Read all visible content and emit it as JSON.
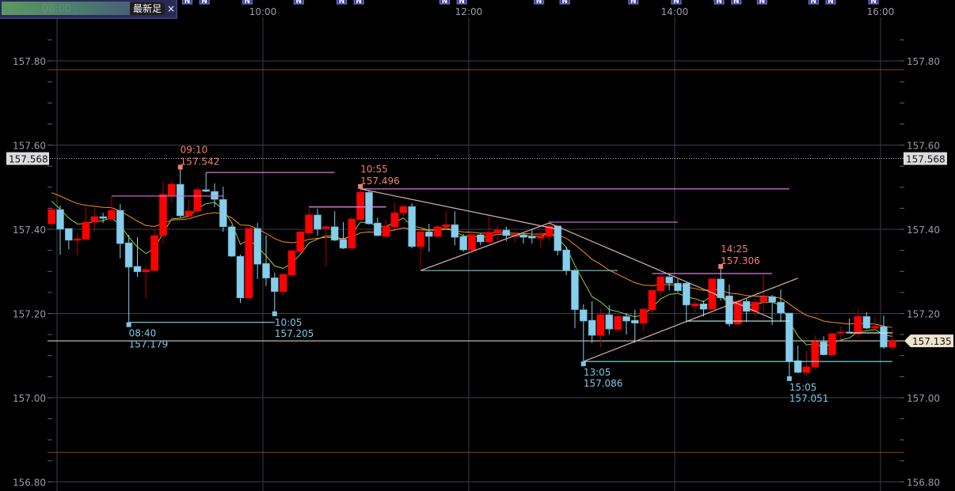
{
  "toolbar": {
    "latest_bar_label": "最新足",
    "close_label": "×",
    "faded_time_label": "08:00"
  },
  "chart_data": {
    "type": "candlestick",
    "xlabel": "",
    "ylabel": "",
    "time_ticks": [
      "08:00",
      "10:00",
      "12:00",
      "14:00",
      "16:00"
    ],
    "price_ticks": [
      "157.80",
      "157.60",
      "157.40",
      "157.20",
      "157.00",
      "156.80"
    ],
    "ylim": [
      156.78,
      157.945
    ],
    "grid": true,
    "colors": {
      "up": "#ff0000",
      "down": "#87ceeb",
      "ma_short": "#9acd32",
      "ma_long": "#ff8c1a",
      "high_label": "#f08070",
      "low_label": "#7ec8e8",
      "current_price": "#efe4cc",
      "range_line": "#8b4513"
    },
    "candles": [
      [
        "07:55",
        157.413,
        157.449,
        157.409,
        157.447
      ],
      [
        "08:00",
        157.447,
        157.456,
        157.34,
        157.4
      ],
      [
        "08:05",
        157.402,
        157.402,
        157.353,
        157.374
      ],
      [
        "08:10",
        157.374,
        157.391,
        157.338,
        157.377
      ],
      [
        "08:15",
        157.376,
        157.453,
        157.376,
        157.417
      ],
      [
        "08:20",
        157.417,
        157.454,
        157.394,
        157.43
      ],
      [
        "08:25",
        157.43,
        157.439,
        157.415,
        157.426
      ],
      [
        "08:30",
        157.424,
        157.479,
        157.424,
        157.445
      ],
      [
        "08:35",
        157.445,
        157.46,
        157.331,
        157.366
      ],
      [
        "08:40",
        157.368,
        157.387,
        157.179,
        157.31
      ],
      [
        "08:45",
        157.312,
        157.381,
        157.287,
        157.299
      ],
      [
        "08:50",
        157.299,
        157.312,
        157.235,
        157.304
      ],
      [
        "08:55",
        157.302,
        157.4,
        157.302,
        157.385
      ],
      [
        "09:00",
        157.385,
        157.513,
        157.366,
        157.483
      ],
      [
        "09:05",
        157.481,
        157.516,
        157.462,
        157.507
      ],
      [
        "09:10",
        157.507,
        157.542,
        157.428,
        157.432
      ],
      [
        "09:15",
        157.432,
        157.471,
        157.423,
        157.443
      ],
      [
        "09:20",
        157.443,
        157.501,
        157.439,
        157.494
      ],
      [
        "09:25",
        157.494,
        157.535,
        157.488,
        157.49
      ],
      [
        "09:30",
        157.49,
        157.509,
        157.453,
        157.471
      ],
      [
        "09:35",
        157.471,
        157.501,
        157.394,
        157.406
      ],
      [
        "09:40",
        157.406,
        157.409,
        157.334,
        157.336
      ],
      [
        "09:45",
        157.336,
        157.34,
        157.225,
        157.237
      ],
      [
        "09:50",
        157.237,
        157.404,
        157.233,
        157.402
      ],
      [
        "09:55",
        157.402,
        157.415,
        157.282,
        157.317
      ],
      [
        "10:00",
        157.319,
        157.385,
        157.265,
        157.284
      ],
      [
        "10:05",
        157.285,
        157.297,
        157.205,
        157.252
      ],
      [
        "10:10",
        157.252,
        157.295,
        157.242,
        157.293
      ],
      [
        "10:15",
        157.291,
        157.351,
        157.289,
        157.349
      ],
      [
        "10:20",
        157.347,
        157.396,
        157.344,
        157.394
      ],
      [
        "10:25",
        157.391,
        157.453,
        157.381,
        157.434
      ],
      [
        "10:30",
        157.434,
        157.449,
        157.385,
        157.4
      ],
      [
        "10:35",
        157.402,
        157.409,
        157.312,
        157.406
      ],
      [
        "10:40",
        157.406,
        157.443,
        157.372,
        157.374
      ],
      [
        "10:45",
        157.376,
        157.417,
        157.353,
        157.355
      ],
      [
        "10:50",
        157.355,
        157.428,
        157.353,
        157.424
      ],
      [
        "10:55",
        157.423,
        157.496,
        157.421,
        157.488
      ],
      [
        "11:00",
        157.488,
        157.492,
        157.411,
        157.413
      ],
      [
        "11:05",
        157.415,
        157.428,
        157.383,
        157.385
      ],
      [
        "11:10",
        157.383,
        157.423,
        157.383,
        157.408
      ],
      [
        "11:15",
        157.406,
        157.464,
        157.4,
        157.439
      ],
      [
        "11:20",
        157.439,
        157.46,
        157.432,
        157.454
      ],
      [
        "11:25",
        157.454,
        157.462,
        157.355,
        157.359
      ],
      [
        "11:30",
        157.359,
        157.406,
        157.306,
        157.394
      ],
      [
        "11:35",
        157.394,
        157.413,
        157.347,
        157.383
      ],
      [
        "11:40",
        157.383,
        157.409,
        157.381,
        157.406
      ],
      [
        "11:45",
        157.406,
        157.443,
        157.4,
        157.411
      ],
      [
        "11:50",
        157.411,
        157.443,
        157.362,
        157.381
      ],
      [
        "11:55",
        157.383,
        157.389,
        157.347,
        157.351
      ],
      [
        "12:00",
        157.351,
        157.393,
        157.344,
        157.387
      ],
      [
        "12:05",
        157.387,
        157.391,
        157.362,
        157.37
      ],
      [
        "12:10",
        157.37,
        157.43,
        157.37,
        157.393
      ],
      [
        "12:15",
        157.391,
        157.409,
        157.372,
        157.398
      ],
      [
        "12:20",
        157.398,
        157.406,
        157.372,
        157.385
      ],
      [
        "12:25",
        157.383,
        157.396,
        157.368,
        157.387
      ],
      [
        "12:30",
        157.387,
        157.389,
        157.366,
        157.381
      ],
      [
        "12:35",
        157.383,
        157.4,
        157.366,
        157.379
      ],
      [
        "12:40",
        157.379,
        157.396,
        157.357,
        157.385
      ],
      [
        "12:45",
        157.383,
        157.419,
        157.372,
        157.408
      ],
      [
        "12:50",
        157.408,
        157.409,
        157.338,
        157.349
      ],
      [
        "12:55",
        157.351,
        157.359,
        157.291,
        157.302
      ],
      [
        "13:00",
        157.302,
        157.306,
        157.165,
        157.209
      ],
      [
        "13:05",
        157.209,
        157.222,
        157.086,
        157.182
      ],
      [
        "13:10",
        157.184,
        157.229,
        157.13,
        157.148
      ],
      [
        "13:15",
        157.148,
        157.212,
        157.12,
        157.197
      ],
      [
        "13:20",
        157.197,
        157.22,
        157.15,
        157.163
      ],
      [
        "13:25",
        157.162,
        157.197,
        157.154,
        157.193
      ],
      [
        "13:30",
        157.193,
        157.201,
        157.15,
        157.182
      ],
      [
        "13:35",
        157.184,
        157.209,
        157.13,
        157.177
      ],
      [
        "13:40",
        157.177,
        157.214,
        157.16,
        157.21
      ],
      [
        "13:45",
        157.209,
        157.255,
        157.195,
        157.255
      ],
      [
        "13:50",
        157.254,
        157.291,
        157.24,
        157.287
      ],
      [
        "13:55",
        157.287,
        157.293,
        157.255,
        157.272
      ],
      [
        "14:00",
        157.272,
        157.282,
        157.25,
        157.254
      ],
      [
        "14:05",
        157.272,
        157.274,
        157.179,
        157.22
      ],
      [
        "14:10",
        157.218,
        157.231,
        157.203,
        157.223
      ],
      [
        "14:15",
        157.223,
        157.231,
        157.193,
        157.21
      ],
      [
        "14:20",
        157.21,
        157.285,
        157.209,
        157.282
      ],
      [
        "14:25",
        157.282,
        157.306,
        157.231,
        157.237
      ],
      [
        "14:30",
        157.242,
        157.269,
        157.169,
        157.175
      ],
      [
        "14:35",
        157.175,
        157.231,
        157.171,
        157.229
      ],
      [
        "14:40",
        157.229,
        157.235,
        157.18,
        157.205
      ],
      [
        "14:45",
        157.205,
        157.235,
        157.192,
        157.227
      ],
      [
        "14:50",
        157.227,
        157.293,
        157.205,
        157.24
      ],
      [
        "14:55",
        157.24,
        157.244,
        157.173,
        157.227
      ],
      [
        "15:00",
        157.227,
        157.257,
        157.18,
        157.201
      ],
      [
        "15:05",
        157.201,
        157.201,
        157.051,
        157.086
      ],
      [
        "15:10",
        157.088,
        157.124,
        157.058,
        157.06
      ],
      [
        "15:15",
        157.06,
        157.111,
        157.053,
        157.073
      ],
      [
        "15:20",
        157.073,
        157.148,
        157.066,
        157.133
      ],
      [
        "15:25",
        157.133,
        157.146,
        157.1,
        157.102
      ],
      [
        "15:30",
        157.102,
        157.154,
        157.098,
        157.152
      ],
      [
        "15:35",
        157.154,
        157.169,
        157.139,
        157.156
      ],
      [
        "15:40",
        157.156,
        157.188,
        157.154,
        157.154
      ],
      [
        "15:45",
        157.152,
        157.21,
        157.143,
        157.193
      ],
      [
        "15:50",
        157.193,
        157.203,
        157.163,
        157.165
      ],
      [
        "15:55",
        157.165,
        157.19,
        157.163,
        157.169
      ],
      [
        "16:00",
        157.169,
        157.195,
        157.116,
        157.12
      ],
      [
        "16:05",
        157.12,
        157.162,
        157.115,
        157.135
      ]
    ],
    "moving_averages": [
      {
        "color": "#9acd32"
      },
      {
        "color": "#ff8c1a"
      }
    ],
    "horizontal_levels": [
      {
        "price": 157.779,
        "color": "#8b4513",
        "style": "solid"
      },
      {
        "price": 156.87,
        "color": "#8b4513",
        "style": "solid"
      },
      {
        "price": 157.568,
        "label": "157.568",
        "color": "#bbbbbb",
        "style": "dotted"
      },
      {
        "price": 157.135,
        "label": "157.135",
        "color": "#efe4cc",
        "style": "solid",
        "current": true
      }
    ],
    "extremes": [
      {
        "type": "high",
        "time": "09:10",
        "price": "157.542"
      },
      {
        "type": "low",
        "time": "08:40",
        "price": "157.179"
      },
      {
        "type": "high",
        "time": "10:55",
        "price": "157.496"
      },
      {
        "type": "low",
        "time": "10:05",
        "price": "157.205"
      },
      {
        "type": "low",
        "time": "13:05",
        "price": "157.086"
      },
      {
        "type": "high",
        "time": "14:25",
        "price": "157.306"
      },
      {
        "type": "low",
        "time": "15:05",
        "price": "157.051"
      }
    ],
    "drawn_lines": [
      {
        "from": [
          "08:30",
          157.479
        ],
        "to": [
          "09:35",
          157.479
        ],
        "color": "#e070e0"
      },
      {
        "from": [
          "09:25",
          157.535
        ],
        "to": [
          "10:40",
          157.535
        ],
        "color": "#e070e0"
      },
      {
        "from": [
          "10:25",
          157.453
        ],
        "to": [
          "11:10",
          157.453
        ],
        "color": "#f090f0"
      },
      {
        "from": [
          "10:55",
          157.496
        ],
        "to": [
          "15:05",
          157.496
        ],
        "color": "#e070e0"
      },
      {
        "from": [
          "12:45",
          157.417
        ],
        "to": [
          "14:00",
          157.417
        ],
        "color": "#e070e0"
      },
      {
        "from": [
          "13:45",
          157.295
        ],
        "to": [
          "14:55",
          157.295
        ],
        "color": "#f090f0"
      },
      {
        "from": [
          "10:55",
          157.496
        ],
        "to": [
          "12:50",
          157.4
        ],
        "color": "#d8b0b0"
      },
      {
        "from": [
          "12:45",
          157.415
        ],
        "to": [
          "14:55",
          157.188
        ],
        "color": "#d8b0b0"
      },
      {
        "from": [
          "11:30",
          157.302
        ],
        "to": [
          "12:45",
          157.415
        ],
        "color": "#d8b0b0"
      },
      {
        "from": [
          "13:05",
          157.086
        ],
        "to": [
          "15:10",
          157.284
        ],
        "color": "#d8b0b0"
      },
      {
        "from": [
          "11:30",
          157.302
        ],
        "to": [
          "13:25",
          157.302
        ],
        "color": "#7ec8c8"
      },
      {
        "from": [
          "13:05",
          157.086
        ],
        "to": [
          "16:05",
          157.086
        ],
        "color": "#80e8f0"
      },
      {
        "from": [
          "08:40",
          157.179
        ],
        "to": [
          "10:05",
          157.179
        ],
        "color": "#80d8e8"
      },
      {
        "from": [
          "14:05",
          157.182
        ],
        "to": [
          "15:05",
          157.182
        ],
        "color": "#c0f0f0"
      },
      {
        "from": [
          "15:40",
          157.154
        ],
        "to": [
          "16:05",
          157.154
        ],
        "color": "#e0e0e0"
      }
    ],
    "news_markers": {
      "label": "N",
      "times": [
        "09:15",
        "09:25",
        "09:50",
        "10:20",
        "10:45",
        "10:55",
        "11:45",
        "11:55",
        "12:40",
        "12:55",
        "13:35",
        "14:00",
        "14:25",
        "14:35",
        "14:50",
        "15:20",
        "15:30",
        "15:55"
      ]
    }
  }
}
